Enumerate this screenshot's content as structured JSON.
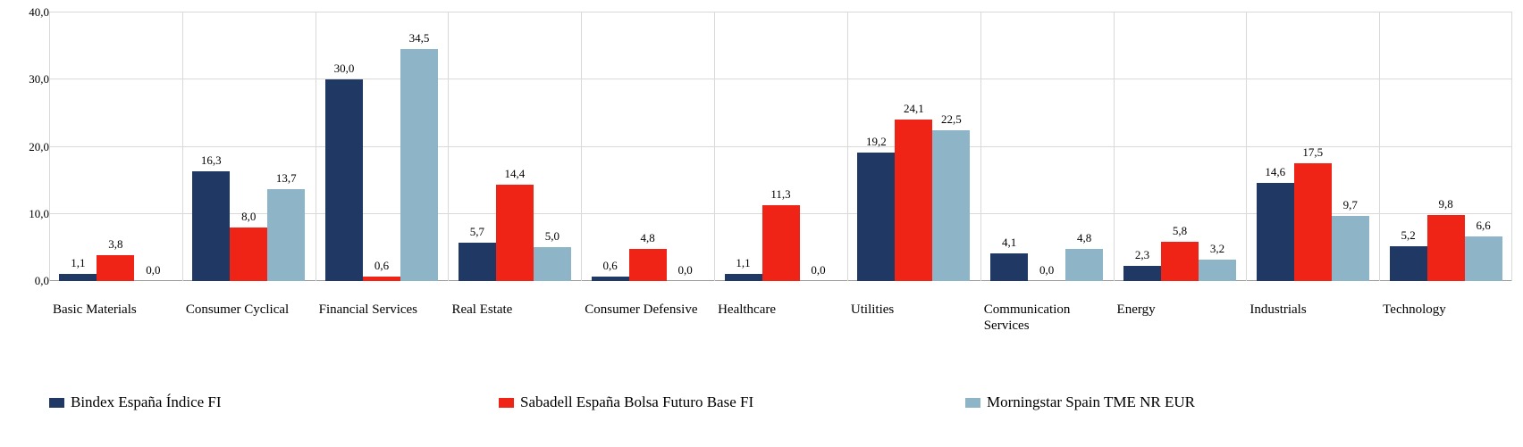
{
  "chart_data": {
    "type": "bar",
    "title": "",
    "categories": [
      "Basic Materials",
      "Consumer Cyclical",
      "Financial Services",
      "Real Estate",
      "Consumer Defensive",
      "Healthcare",
      "Utilities",
      "Communication Services",
      "Energy",
      "Industrials",
      "Technology"
    ],
    "series": [
      {
        "name": "Bindex España Índice FI",
        "color": "#203864",
        "values": [
          1.1,
          16.3,
          30.0,
          5.7,
          0.6,
          1.1,
          19.2,
          4.1,
          2.3,
          14.6,
          5.2
        ]
      },
      {
        "name": "Sabadell España Bolsa Futuro Base FI",
        "color": "#ef2416",
        "values": [
          3.8,
          8.0,
          0.6,
          14.4,
          4.8,
          11.3,
          24.1,
          0.0,
          5.8,
          17.5,
          9.8
        ]
      },
      {
        "name": "Morningstar Spain TME NR EUR",
        "color": "#8eb4c8",
        "values": [
          0.0,
          13.7,
          34.5,
          5.0,
          0.0,
          0.0,
          22.5,
          4.8,
          3.2,
          9.7,
          6.6
        ]
      }
    ],
    "ylim": [
      0,
      40
    ],
    "yticks": [
      0,
      10,
      20,
      30,
      40
    ],
    "ytick_labels": [
      "0,0",
      "10,0",
      "20,0",
      "30,0",
      "40,0"
    ],
    "decimal_separator": ",",
    "bar_value_labels": true,
    "grid": {
      "horizontal": true,
      "vertical": true
    },
    "legend_position": "bottom",
    "colors": {
      "gridline": "#d9d9d9",
      "baseline": "#9a9a9a",
      "text": "#000000"
    }
  }
}
